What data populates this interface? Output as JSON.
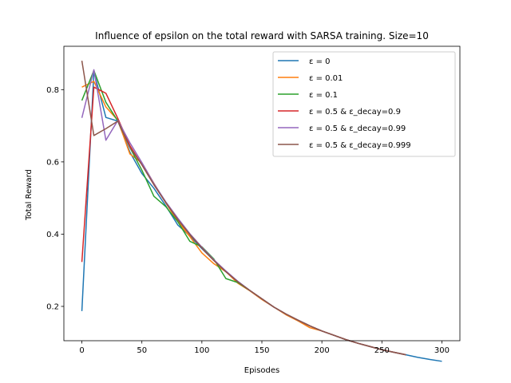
{
  "chart_data": {
    "type": "line",
    "title": "Influence of epsilon on the total reward with SARSA training. Size=10",
    "xlabel": "Episodes",
    "ylabel": "Total Reward",
    "xlim": [
      -15,
      315
    ],
    "ylim": [
      0.105,
      0.92
    ],
    "xticks": [
      0,
      50,
      100,
      150,
      200,
      250,
      300
    ],
    "yticks": [
      0.2,
      0.4,
      0.6,
      0.8
    ],
    "ytick_labels": [
      "0.2",
      "0.4",
      "0.6",
      "0.8"
    ],
    "legend_position": "top-right",
    "grid": false,
    "series": [
      {
        "name": "ε = 0",
        "color": "#1f77b4",
        "x": [
          0,
          10,
          20,
          30,
          40,
          50,
          60,
          70,
          80,
          90,
          100,
          110,
          120,
          130,
          140,
          150,
          160,
          170,
          180,
          190,
          200,
          210,
          220,
          230,
          240,
          250,
          260,
          270,
          280,
          290,
          300
        ],
        "y": [
          0.187,
          0.85,
          0.723,
          0.713,
          0.627,
          0.568,
          0.527,
          0.478,
          0.425,
          0.395,
          0.36,
          0.327,
          0.296,
          0.269,
          0.244,
          0.221,
          0.198,
          0.179,
          0.162,
          0.146,
          0.132,
          0.12,
          0.108,
          0.098,
          0.089,
          0.08,
          0.073,
          0.066,
          0.059,
          0.053,
          0.048
        ]
      },
      {
        "name": "ε = 0.01",
        "color": "#ff7f0e",
        "x": [
          0,
          10,
          20,
          30,
          40,
          50,
          60,
          70,
          80,
          90,
          100,
          110,
          120,
          130,
          140,
          150,
          160,
          170,
          180,
          190,
          200,
          210,
          220,
          230,
          240,
          250,
          260,
          270
        ],
        "y": [
          0.807,
          0.823,
          0.752,
          0.715,
          0.622,
          0.597,
          0.541,
          0.486,
          0.435,
          0.393,
          0.348,
          0.318,
          0.296,
          0.264,
          0.243,
          0.219,
          0.198,
          0.177,
          0.16,
          0.141,
          0.132,
          0.12,
          0.108,
          0.098,
          0.089,
          0.08,
          0.073,
          0.066
        ]
      },
      {
        "name": "ε = 0.1",
        "color": "#2ca02c",
        "x": [
          0,
          10,
          20,
          30,
          40,
          50,
          60,
          70,
          80,
          90,
          100,
          110,
          120,
          130,
          140,
          150,
          160,
          170,
          180,
          190,
          200,
          210,
          220,
          230,
          240,
          250,
          260,
          270
        ],
        "y": [
          0.77,
          0.853,
          0.765,
          0.713,
          0.64,
          0.577,
          0.505,
          0.476,
          0.434,
          0.38,
          0.365,
          0.331,
          0.277,
          0.266,
          0.244,
          0.221,
          0.198,
          0.179,
          0.162,
          0.146,
          0.132,
          0.12,
          0.108,
          0.098,
          0.089,
          0.08,
          0.073,
          0.066
        ]
      },
      {
        "name": "ε = 0.5 & ε_decay=0.9",
        "color": "#d62728",
        "x": [
          0,
          10,
          20,
          30,
          40,
          50,
          60,
          70,
          80,
          90,
          100,
          110,
          120,
          130,
          140,
          150,
          160,
          170,
          180,
          190,
          200,
          210,
          220,
          230,
          240,
          250,
          260,
          270
        ],
        "y": [
          0.323,
          0.807,
          0.79,
          0.72,
          0.645,
          0.592,
          0.537,
          0.487,
          0.44,
          0.399,
          0.362,
          0.327,
          0.296,
          0.268,
          0.244,
          0.221,
          0.198,
          0.179,
          0.162,
          0.146,
          0.132,
          0.12,
          0.108,
          0.098,
          0.089,
          0.08,
          0.073,
          0.066
        ]
      },
      {
        "name": "ε = 0.5 & ε_decay=0.99",
        "color": "#9467bd",
        "x": [
          0,
          10,
          20,
          30,
          40,
          50,
          60,
          70,
          80,
          90,
          100,
          110,
          120,
          130,
          140,
          150,
          160,
          170,
          180,
          190,
          200,
          210,
          220,
          230,
          240,
          250,
          260,
          270
        ],
        "y": [
          0.722,
          0.855,
          0.66,
          0.715,
          0.653,
          0.598,
          0.54,
          0.489,
          0.444,
          0.401,
          0.364,
          0.329,
          0.298,
          0.269,
          0.244,
          0.221,
          0.198,
          0.179,
          0.162,
          0.146,
          0.132,
          0.12,
          0.108,
          0.098,
          0.089,
          0.08,
          0.073,
          0.066
        ]
      },
      {
        "name": "ε = 0.5 & ε_decay=0.999",
        "color": "#8c564b",
        "x": [
          0,
          10,
          20,
          30,
          40,
          50,
          60,
          70,
          80,
          90,
          100,
          110,
          120,
          130,
          140,
          150,
          160,
          170,
          180,
          190,
          200,
          210,
          220,
          230,
          240,
          250,
          260,
          270
        ],
        "y": [
          0.88,
          0.673,
          0.692,
          0.713,
          0.64,
          0.592,
          0.537,
          0.487,
          0.44,
          0.399,
          0.362,
          0.327,
          0.296,
          0.268,
          0.244,
          0.221,
          0.198,
          0.179,
          0.162,
          0.146,
          0.132,
          0.12,
          0.108,
          0.098,
          0.089,
          0.08,
          0.073,
          0.066
        ]
      }
    ]
  }
}
